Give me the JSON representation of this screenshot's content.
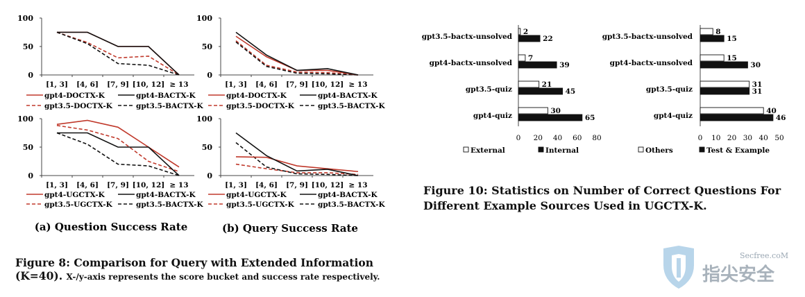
{
  "figure8": {
    "subcaption_a": "(a) Question Success Rate",
    "subcaption_b": "(b) Query Success Rate",
    "caption_main": "Figure 8: Comparison for Query with Extended Information (K=40).",
    "caption_note": "X-/y-axis represents the score bucket and success rate respectively."
  },
  "figure10": {
    "caption": "Figure 10: Statistics on Number of Correct Questions For Different Example Sources Used in UGCTX-K."
  },
  "watermark": {
    "site": "Secfree.coM",
    "brand": "指尖安全"
  },
  "colors": {
    "red": "#c0392b",
    "black": "#111111",
    "dark_red": "#b03030"
  },
  "chart_data": [
    {
      "id": "a-top",
      "type": "line",
      "categories": [
        "[1, 3]",
        "[4, 6]",
        "[7, 9]",
        "[10, 12]",
        "≥ 13"
      ],
      "ylim": [
        0,
        100
      ],
      "yticks": [
        0,
        50,
        100
      ],
      "series": [
        {
          "name": "gpt4-DOCTX-K",
          "color": "#c0392b",
          "dash": false,
          "values": [
            75,
            75,
            50,
            50,
            0
          ]
        },
        {
          "name": "gpt4-BACTX-K",
          "color": "#111111",
          "dash": false,
          "values": [
            75,
            75,
            50,
            50,
            0
          ]
        },
        {
          "name": "gpt3.5-DOCTX-K",
          "color": "#c0392b",
          "dash": true,
          "values": [
            75,
            57,
            30,
            33,
            0
          ]
        },
        {
          "name": "gpt3.5-BACTX-K",
          "color": "#111111",
          "dash": true,
          "values": [
            75,
            55,
            20,
            17,
            0
          ]
        }
      ]
    },
    {
      "id": "b-top",
      "type": "line",
      "categories": [
        "[1, 3]",
        "[4, 6]",
        "[7, 9]",
        "[10, 12]",
        "≥ 13"
      ],
      "ylim": [
        0,
        100
      ],
      "yticks": [
        0,
        50,
        100
      ],
      "series": [
        {
          "name": "gpt4-DOCTX-K",
          "color": "#c0392b",
          "dash": false,
          "values": [
            68,
            32,
            8,
            8,
            0
          ]
        },
        {
          "name": "gpt4-BACTX-K",
          "color": "#111111",
          "dash": false,
          "values": [
            75,
            35,
            8,
            11,
            0
          ]
        },
        {
          "name": "gpt3.5-DOCTX-K",
          "color": "#c0392b",
          "dash": true,
          "values": [
            60,
            17,
            5,
            4,
            0
          ]
        },
        {
          "name": "gpt3.5-BACTX-K",
          "color": "#111111",
          "dash": true,
          "values": [
            58,
            15,
            3,
            2,
            0
          ]
        }
      ]
    },
    {
      "id": "a-bottom",
      "type": "line",
      "categories": [
        "[1, 3]",
        "[4, 6]",
        "[7, 9]",
        "[10, 12]",
        "≥ 13"
      ],
      "ylim": [
        0,
        100
      ],
      "yticks": [
        0,
        50,
        100
      ],
      "series": [
        {
          "name": "gpt4-UGCTX-K",
          "color": "#c0392b",
          "dash": false,
          "values": [
            90,
            97,
            85,
            50,
            15
          ]
        },
        {
          "name": "gpt4-BACTX-K",
          "color": "#111111",
          "dash": false,
          "values": [
            75,
            75,
            50,
            50,
            0
          ]
        },
        {
          "name": "gpt3.5-UGCTX-K",
          "color": "#c0392b",
          "dash": true,
          "values": [
            88,
            80,
            65,
            25,
            7
          ]
        },
        {
          "name": "gpt3.5-BACTX-K",
          "color": "#111111",
          "dash": true,
          "values": [
            75,
            55,
            20,
            17,
            0
          ]
        }
      ]
    },
    {
      "id": "b-bottom",
      "type": "line",
      "categories": [
        "[1, 3]",
        "[4, 6]",
        "[7, 9]",
        "[10, 12]",
        "≥ 13"
      ],
      "ylim": [
        0,
        100
      ],
      "yticks": [
        0,
        50,
        100
      ],
      "series": [
        {
          "name": "gpt4-UGCTX-K",
          "color": "#c0392b",
          "dash": false,
          "values": [
            33,
            32,
            17,
            12,
            7
          ]
        },
        {
          "name": "gpt4-BACTX-K",
          "color": "#111111",
          "dash": false,
          "values": [
            75,
            35,
            8,
            11,
            0
          ]
        },
        {
          "name": "gpt3.5-UGCTX-K",
          "color": "#c0392b",
          "dash": true,
          "values": [
            20,
            12,
            5,
            5,
            2
          ]
        },
        {
          "name": "gpt3.5-BACTX-K",
          "color": "#111111",
          "dash": true,
          "values": [
            58,
            15,
            3,
            2,
            0
          ]
        }
      ]
    },
    {
      "id": "fig10-left",
      "type": "bar",
      "orientation": "horizontal",
      "categories": [
        "gpt3.5-bactx-unsolved",
        "gpt4-bactx-unsolved",
        "gpt3.5-quiz",
        "gpt4-quiz"
      ],
      "xlim": [
        0,
        80
      ],
      "xticks": [
        0,
        20,
        40,
        60,
        80
      ],
      "series": [
        {
          "name": "External",
          "fill": "#ffffff",
          "values": [
            2,
            7,
            21,
            30
          ]
        },
        {
          "name": "Internal",
          "fill": "#111111",
          "values": [
            22,
            39,
            45,
            65
          ]
        }
      ]
    },
    {
      "id": "fig10-right",
      "type": "bar",
      "orientation": "horizontal",
      "categories": [
        "gpt3.5-bactx-unsolved",
        "gpt4-bactx-unsolved",
        "gpt3.5-quiz",
        "gpt4-quiz"
      ],
      "xlim": [
        0,
        50
      ],
      "xticks": [
        0,
        10,
        20,
        30,
        40,
        50
      ],
      "series": [
        {
          "name": "Others",
          "fill": "#ffffff",
          "values": [
            8,
            15,
            31,
            40
          ]
        },
        {
          "name": "Test & Example",
          "fill": "#111111",
          "values": [
            15,
            30,
            31,
            46
          ]
        }
      ]
    }
  ]
}
